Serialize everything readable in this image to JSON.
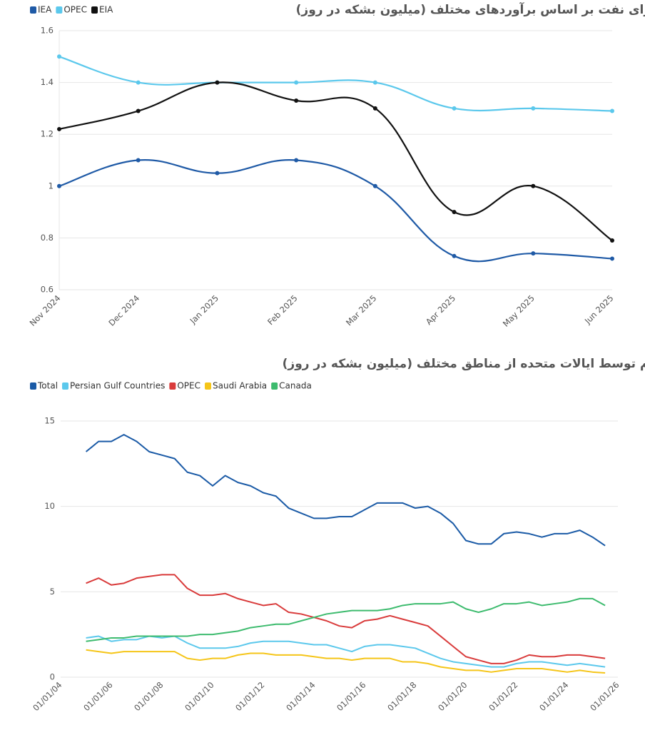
{
  "chart_data": [
    {
      "type": "line",
      "title": "رشد تقاضا برای نفت بر اساس برآوردهای مختلف (میلیون بشکه در روز)",
      "categories": [
        "Nov 2024",
        "Dec 2024",
        "Jan 2025",
        "Feb 2025",
        "Mar 2025",
        "Apr 2025",
        "May 2025",
        "Jun 2025"
      ],
      "series": [
        {
          "name": "IEA",
          "color": "#1f5aa6",
          "values": [
            1.0,
            1.1,
            1.05,
            1.1,
            1.0,
            0.73,
            0.74,
            0.72
          ]
        },
        {
          "name": "OPEC",
          "color": "#5bc8ec",
          "values": [
            1.5,
            1.4,
            1.4,
            1.4,
            1.4,
            1.3,
            1.3,
            1.29
          ]
        },
        {
          "name": "EIA",
          "color": "#111111",
          "values": [
            1.22,
            1.29,
            1.4,
            1.33,
            1.3,
            0.9,
            1.0,
            0.79
          ]
        }
      ],
      "ylim": [
        0.6,
        1.6
      ],
      "yticks": [
        0.6,
        0.8,
        1,
        1.2,
        1.4,
        1.6
      ],
      "grid": true,
      "smooth": true,
      "markers": true,
      "legend": "top-left"
    },
    {
      "type": "line",
      "title": "واردات نفت خام توسط ایالات متحده از مناطق مختلف (میلیون بشکه در روز)",
      "x": [
        "01/01/05",
        "01/07/05",
        "01/01/06",
        "01/07/06",
        "01/01/07",
        "01/07/07",
        "01/01/08",
        "01/07/08",
        "01/01/09",
        "01/07/09",
        "01/01/10",
        "01/07/10",
        "01/01/11",
        "01/07/11",
        "01/01/12",
        "01/07/12",
        "01/01/13",
        "01/07/13",
        "01/01/14",
        "01/07/14",
        "01/01/15",
        "01/07/15",
        "01/01/16",
        "01/07/16",
        "01/01/17",
        "01/07/17",
        "01/01/18",
        "01/07/18",
        "01/01/19",
        "01/07/19",
        "01/01/20",
        "01/07/20",
        "01/01/21",
        "01/07/21",
        "01/01/22",
        "01/07/22",
        "01/01/23",
        "01/07/23",
        "01/01/24",
        "01/07/24",
        "01/01/25",
        "01/07/25"
      ],
      "series": [
        {
          "name": "Total",
          "color": "#1a5aa6",
          "values": [
            13.2,
            13.8,
            13.8,
            14.2,
            13.8,
            13.2,
            13.0,
            12.8,
            12.0,
            11.8,
            11.2,
            11.8,
            11.4,
            11.2,
            10.8,
            10.6,
            9.9,
            9.6,
            9.3,
            9.3,
            9.4,
            9.4,
            9.8,
            10.2,
            10.2,
            10.2,
            9.9,
            10.0,
            9.6,
            9.0,
            8.0,
            7.8,
            7.8,
            8.4,
            8.5,
            8.4,
            8.2,
            8.4,
            8.4,
            8.6,
            8.2,
            7.7
          ]
        },
        {
          "name": "Persian Gulf Countries",
          "color": "#5bc8ec",
          "values": [
            2.3,
            2.4,
            2.1,
            2.2,
            2.2,
            2.4,
            2.3,
            2.4,
            2.0,
            1.7,
            1.7,
            1.7,
            1.8,
            2.0,
            2.1,
            2.1,
            2.1,
            2.0,
            1.9,
            1.9,
            1.7,
            1.5,
            1.8,
            1.9,
            1.9,
            1.8,
            1.7,
            1.4,
            1.1,
            0.9,
            0.8,
            0.7,
            0.6,
            0.6,
            0.8,
            0.9,
            0.9,
            0.8,
            0.7,
            0.8,
            0.7,
            0.6
          ]
        },
        {
          "name": "OPEC",
          "color": "#d93b3b",
          "values": [
            5.5,
            5.8,
            5.4,
            5.5,
            5.8,
            5.9,
            6.0,
            6.0,
            5.2,
            4.8,
            4.8,
            4.9,
            4.6,
            4.4,
            4.2,
            4.3,
            3.8,
            3.7,
            3.5,
            3.3,
            3.0,
            2.9,
            3.3,
            3.4,
            3.6,
            3.4,
            3.2,
            3.0,
            2.4,
            1.8,
            1.2,
            1.0,
            0.8,
            0.8,
            1.0,
            1.3,
            1.2,
            1.2,
            1.3,
            1.3,
            1.2,
            1.1
          ]
        },
        {
          "name": "Saudi Arabia",
          "color": "#f5c518",
          "values": [
            1.6,
            1.5,
            1.4,
            1.5,
            1.5,
            1.5,
            1.5,
            1.5,
            1.1,
            1.0,
            1.1,
            1.1,
            1.3,
            1.4,
            1.4,
            1.3,
            1.3,
            1.3,
            1.2,
            1.1,
            1.1,
            1.0,
            1.1,
            1.1,
            1.1,
            0.9,
            0.9,
            0.8,
            0.6,
            0.5,
            0.4,
            0.4,
            0.3,
            0.4,
            0.5,
            0.5,
            0.5,
            0.4,
            0.3,
            0.4,
            0.3,
            0.25
          ]
        },
        {
          "name": "Canada",
          "color": "#3dbb6e",
          "values": [
            2.1,
            2.2,
            2.3,
            2.3,
            2.4,
            2.4,
            2.4,
            2.4,
            2.4,
            2.5,
            2.5,
            2.6,
            2.7,
            2.9,
            3.0,
            3.1,
            3.1,
            3.3,
            3.5,
            3.7,
            3.8,
            3.9,
            3.9,
            3.9,
            4.0,
            4.2,
            4.3,
            4.3,
            4.3,
            4.4,
            4.0,
            3.8,
            4.0,
            4.3,
            4.3,
            4.4,
            4.2,
            4.3,
            4.4,
            4.6,
            4.6,
            4.2
          ]
        }
      ],
      "xlim": [
        "01/01/04",
        "01/01/26"
      ],
      "xticks": [
        "01/01/04",
        "01/01/06",
        "01/01/08",
        "01/01/10",
        "01/01/12",
        "01/01/14",
        "01/01/16",
        "01/01/18",
        "01/01/20",
        "01/01/22",
        "01/01/24",
        "01/01/26"
      ],
      "ylim": [
        0,
        16
      ],
      "yticks": [
        0,
        5,
        10,
        15
      ],
      "grid": true,
      "smooth": false,
      "markers": false,
      "legend": "top-left"
    }
  ]
}
